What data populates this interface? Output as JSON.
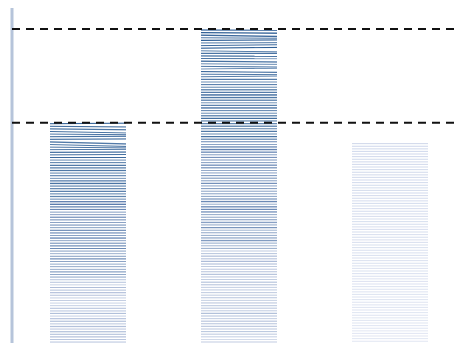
{
  "chart_data": {
    "type": "bar",
    "title": "",
    "xlabel": "",
    "ylabel": "",
    "categories": [
      "",
      "",
      ""
    ],
    "ylim": [
      0,
      320
    ],
    "grid": false,
    "reference_lines": [
      {
        "style": "dashed",
        "value": 315
      },
      {
        "style": "dashed",
        "value": 221
      }
    ],
    "series": [
      {
        "values": [
          220,
          314,
          200
        ],
        "colors": [
          "#4a6fa5",
          "#5b82b5",
          "#c8d2e8"
        ]
      }
    ]
  }
}
